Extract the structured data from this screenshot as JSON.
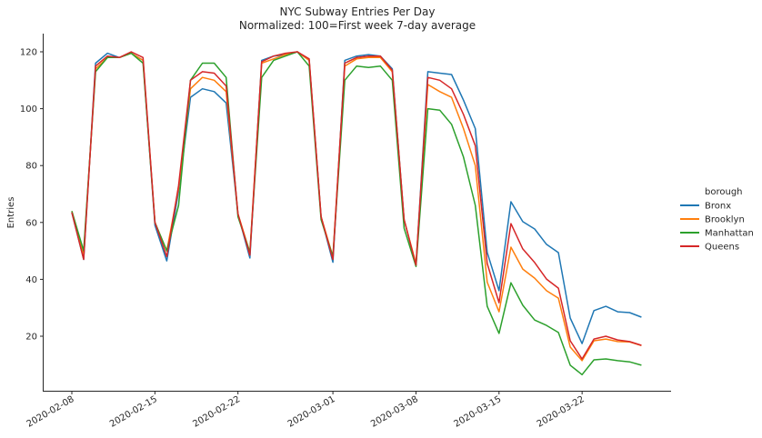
{
  "chart_data": {
    "type": "line",
    "title": "NYC Subway Entries Per Day",
    "subtitle": "Normalized: 100=First week 7-day average",
    "xlabel": "",
    "ylabel": "Entries",
    "ylim": [
      1,
      126
    ],
    "yticks": [
      20,
      40,
      60,
      80,
      100,
      120
    ],
    "xticks": [
      "2020-02-08",
      "2020-02-15",
      "2020-02-22",
      "2020-03-01",
      "2020-03-08",
      "2020-03-15",
      "2020-03-22"
    ],
    "xlim": [
      "2020-02-07",
      "2020-03-29"
    ],
    "grid": false,
    "legend": {
      "title": "borough",
      "position": "right outside"
    },
    "x": [
      "2020-02-08",
      "2020-02-09",
      "2020-02-10",
      "2020-02-11",
      "2020-02-12",
      "2020-02-13",
      "2020-02-14",
      "2020-02-15",
      "2020-02-16",
      "2020-02-17",
      "2020-02-18",
      "2020-02-19",
      "2020-02-20",
      "2020-02-21",
      "2020-02-22",
      "2020-02-23",
      "2020-02-24",
      "2020-02-25",
      "2020-02-26",
      "2020-02-27",
      "2020-02-28",
      "2020-02-29",
      "2020-03-01",
      "2020-03-02",
      "2020-03-03",
      "2020-03-04",
      "2020-03-05",
      "2020-03-06",
      "2020-03-07",
      "2020-03-08",
      "2020-03-09",
      "2020-03-10",
      "2020-03-11",
      "2020-03-12",
      "2020-03-13",
      "2020-03-14",
      "2020-03-15",
      "2020-03-16",
      "2020-03-17",
      "2020-03-18",
      "2020-03-19",
      "2020-03-20",
      "2020-03-21",
      "2020-03-22",
      "2020-03-23",
      "2020-03-24",
      "2020-03-25",
      "2020-03-26",
      "2020-03-27"
    ],
    "series": [
      {
        "name": "Bronx",
        "color": "#1f77b4",
        "values": [
          63.5,
          47,
          116,
          119.5,
          118,
          119.5,
          117,
          59,
          46.5,
          71,
          104,
          107,
          106,
          102,
          63,
          47.5,
          117,
          118.5,
          119,
          120,
          117,
          62,
          46,
          117,
          118.5,
          119,
          118.5,
          114,
          61,
          45,
          113,
          112.5,
          112,
          103,
          93,
          49.5,
          36,
          67.3,
          60.3,
          57.7,
          52.3,
          49.4,
          26.4,
          17.4,
          29,
          30.5,
          28.6,
          28.3,
          26.7
        ]
      },
      {
        "name": "Brooklyn",
        "color": "#ff7f0e",
        "values": [
          64,
          49,
          114,
          118,
          118,
          119.5,
          117,
          60,
          50,
          72,
          107,
          111,
          110,
          106,
          63,
          49.5,
          116,
          117.5,
          119,
          120,
          117,
          62,
          48,
          115,
          117.5,
          118,
          118,
          113,
          61,
          45.5,
          108.5,
          106,
          104,
          93,
          80,
          39,
          28.6,
          51.3,
          43.6,
          40.4,
          36,
          33.4,
          16.2,
          11.4,
          18.4,
          19,
          18.1,
          18,
          16.7
        ]
      },
      {
        "name": "Manhattan",
        "color": "#2ca02c",
        "values": [
          64,
          50,
          113,
          118,
          118,
          119.5,
          116,
          60,
          50,
          66,
          110,
          116,
          116,
          111,
          62,
          49.5,
          111,
          117,
          118.5,
          120,
          115,
          61,
          48,
          110,
          115,
          114.5,
          115,
          110,
          58,
          44.5,
          100,
          99.5,
          94.5,
          83,
          66,
          30.5,
          21,
          38.8,
          30.9,
          25.7,
          23.8,
          21.3,
          9.8,
          6.5,
          11.7,
          12,
          11.4,
          11,
          9.8
        ]
      },
      {
        "name": "Queens",
        "color": "#d62728",
        "values": [
          63.5,
          47,
          115,
          118.5,
          118,
          120,
          118,
          60,
          48,
          73,
          110,
          113,
          112.5,
          108,
          63,
          48.5,
          116.5,
          118.5,
          119.5,
          120,
          117.5,
          62,
          47,
          116,
          118,
          118.5,
          118.5,
          113.5,
          61,
          45,
          111,
          110,
          107,
          98,
          87,
          45.6,
          31.8,
          59.6,
          50.7,
          45.9,
          40.1,
          36.9,
          18.4,
          12,
          19,
          20,
          18.7,
          18.1,
          16.8
        ]
      }
    ]
  }
}
